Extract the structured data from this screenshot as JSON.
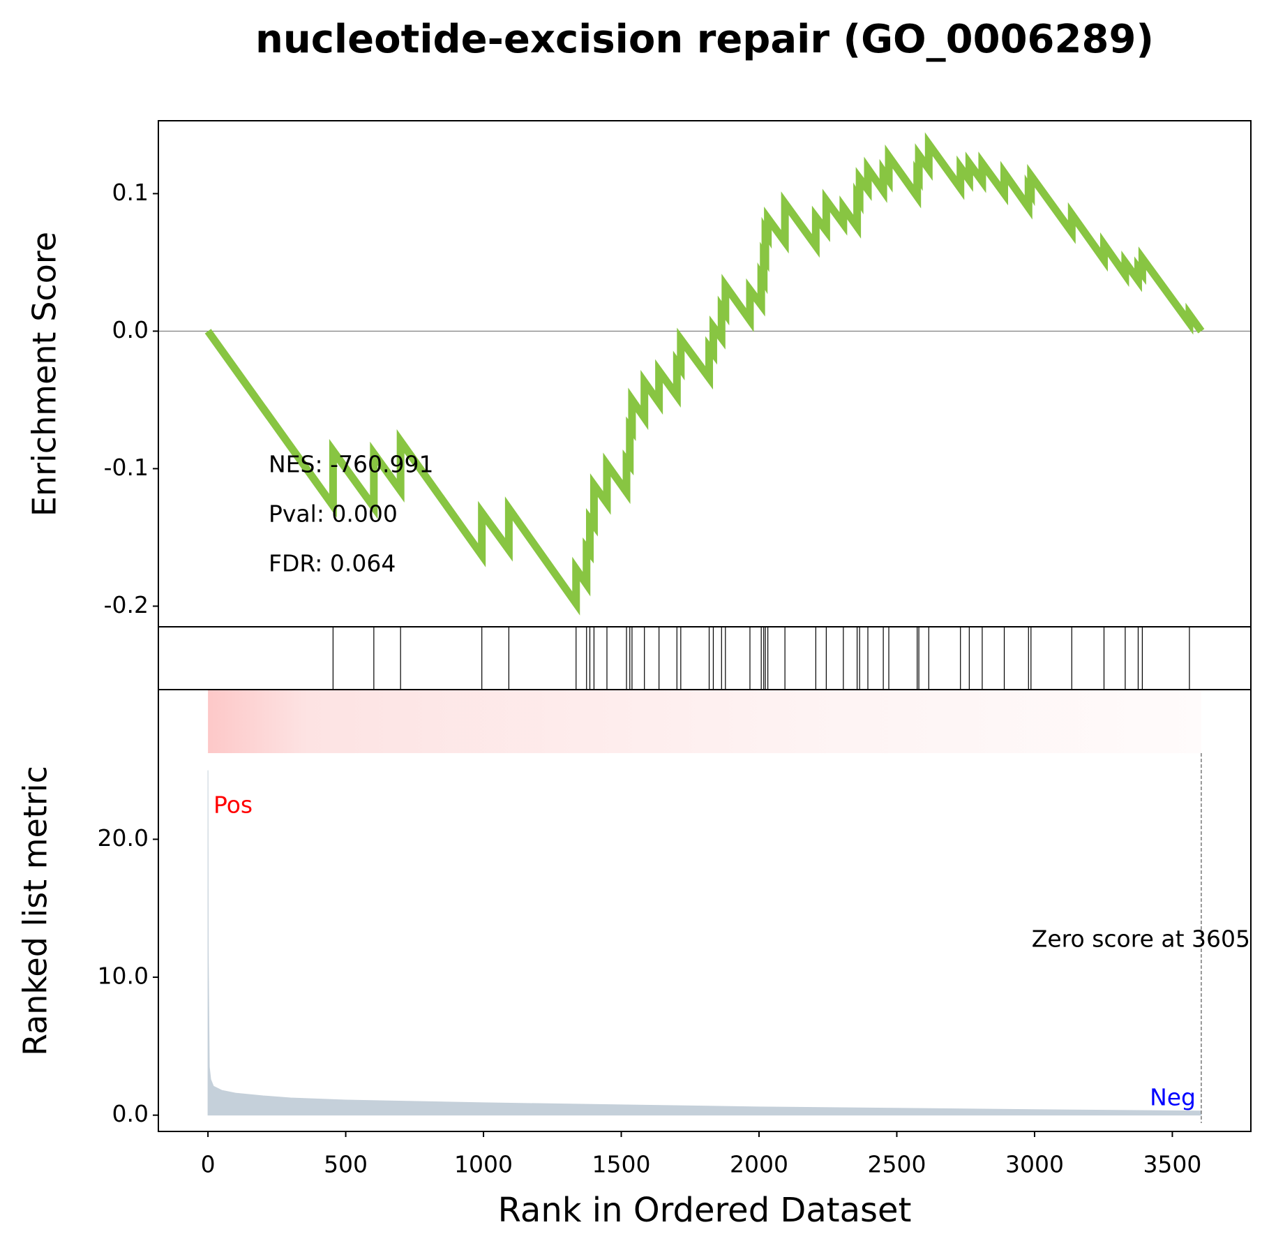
{
  "chart_data": [
    {
      "type": "line",
      "title": "nucleotide-excision repair (GO_0006289)",
      "ylabel": "Enrichment Score",
      "color": "#88c542",
      "ylim": [
        -0.215,
        0.153
      ],
      "yticks": [
        -0.2,
        -0.1,
        {
          "value": 0,
          "label": "0.0"
        },
        0.1
      ],
      "annotations": [
        "NES: -760.991",
        "Pval: 0.000",
        "FDR: 0.064"
      ],
      "x": [
        0,
        454,
        454,
        602,
        602,
        699,
        699,
        994,
        994,
        1092,
        1092,
        1336,
        1336,
        1374,
        1374,
        1386,
        1386,
        1401,
        1401,
        1448,
        1448,
        1519,
        1519,
        1531,
        1531,
        1539,
        1539,
        1584,
        1584,
        1637,
        1637,
        1702,
        1702,
        1716,
        1716,
        1819,
        1819,
        1834,
        1834,
        1864,
        1864,
        1878,
        1878,
        1967,
        1967,
        2008,
        2008,
        2017,
        2017,
        2023,
        2023,
        2032,
        2032,
        2094,
        2094,
        2206,
        2206,
        2244,
        2244,
        2306,
        2306,
        2356,
        2356,
        2365,
        2365,
        2395,
        2395,
        2451,
        2451,
        2471,
        2471,
        2574,
        2574,
        2580,
        2580,
        2616,
        2616,
        2731,
        2731,
        2763,
        2763,
        2810,
        2810,
        2890,
        2890,
        2978,
        2978,
        2987,
        2987,
        3135,
        3135,
        3252,
        3252,
        3329,
        3329,
        3376,
        3376,
        3391,
        3391,
        3562,
        3562,
        3605
      ],
      "values": [
        0,
        -0.127,
        -0.087,
        -0.128,
        -0.089,
        -0.116,
        -0.08,
        -0.163,
        -0.132,
        -0.159,
        -0.129,
        -0.198,
        -0.173,
        -0.184,
        -0.158,
        -0.161,
        -0.137,
        -0.141,
        -0.112,
        -0.125,
        -0.097,
        -0.117,
        -0.094,
        -0.097,
        -0.07,
        -0.072,
        -0.05,
        -0.063,
        -0.037,
        -0.052,
        -0.029,
        -0.047,
        -0.023,
        -0.027,
        -0.006,
        -0.034,
        -0.012,
        -0.016,
        0.003,
        -0.005,
        0.017,
        0.013,
        0.033,
        0.008,
        0.03,
        0.019,
        0.04,
        0.037,
        0.055,
        0.053,
        0.073,
        0.07,
        0.082,
        0.065,
        0.093,
        0.062,
        0.083,
        0.073,
        0.095,
        0.078,
        0.09,
        0.076,
        0.098,
        0.095,
        0.111,
        0.103,
        0.118,
        0.102,
        0.116,
        0.11,
        0.127,
        0.098,
        0.114,
        0.112,
        0.128,
        0.118,
        0.136,
        0.104,
        0.119,
        0.11,
        0.122,
        0.109,
        0.122,
        0.1,
        0.115,
        0.09,
        0.104,
        0.101,
        0.113,
        0.072,
        0.085,
        0.052,
        0.063,
        0.041,
        0.05,
        0.037,
        0.046,
        0.042,
        0.053,
        0.006,
        0.012,
        0
      ]
    },
    {
      "type": "hits",
      "color": "#000000",
      "x": [
        454,
        602,
        699,
        994,
        1092,
        1336,
        1374,
        1386,
        1401,
        1448,
        1519,
        1531,
        1539,
        1584,
        1637,
        1702,
        1716,
        1819,
        1834,
        1864,
        1878,
        1967,
        2008,
        2017,
        2023,
        2032,
        2094,
        2206,
        2244,
        2306,
        2356,
        2365,
        2395,
        2451,
        2471,
        2574,
        2580,
        2616,
        2731,
        2763,
        2810,
        2890,
        2978,
        2987,
        3135,
        3252,
        3329,
        3376,
        3391,
        3562
      ]
    },
    {
      "type": "area",
      "xlabel": "Rank in Ordered Dataset",
      "ylabel": "Ranked list metric",
      "color": "#c5d0da",
      "xlim": [
        -180,
        3785
      ],
      "xticks": [
        0,
        500,
        1000,
        1500,
        2000,
        2500,
        3000,
        3500
      ],
      "ylim": [
        -1.18,
        30.85
      ],
      "yticks": [
        {
          "value": 0,
          "label": "0.0"
        },
        {
          "value": 10,
          "label": "10.0"
        },
        {
          "value": 20,
          "label": "20.0"
        }
      ],
      "pos_label": "Pos",
      "neg_label": "Neg",
      "zero_label": "Zero score at 3605",
      "zero_score_at": 3605,
      "x": [
        0,
        1,
        5,
        10,
        20,
        50,
        100,
        200,
        300,
        500,
        1000,
        1500,
        2000,
        2500,
        3000,
        3500,
        3605
      ],
      "values": [
        25,
        12,
        3.5,
        2.6,
        2.1,
        1.8,
        1.6,
        1.4,
        1.25,
        1.1,
        0.9,
        0.75,
        0.6,
        0.5,
        0.4,
        0.32,
        0.3
      ]
    }
  ]
}
